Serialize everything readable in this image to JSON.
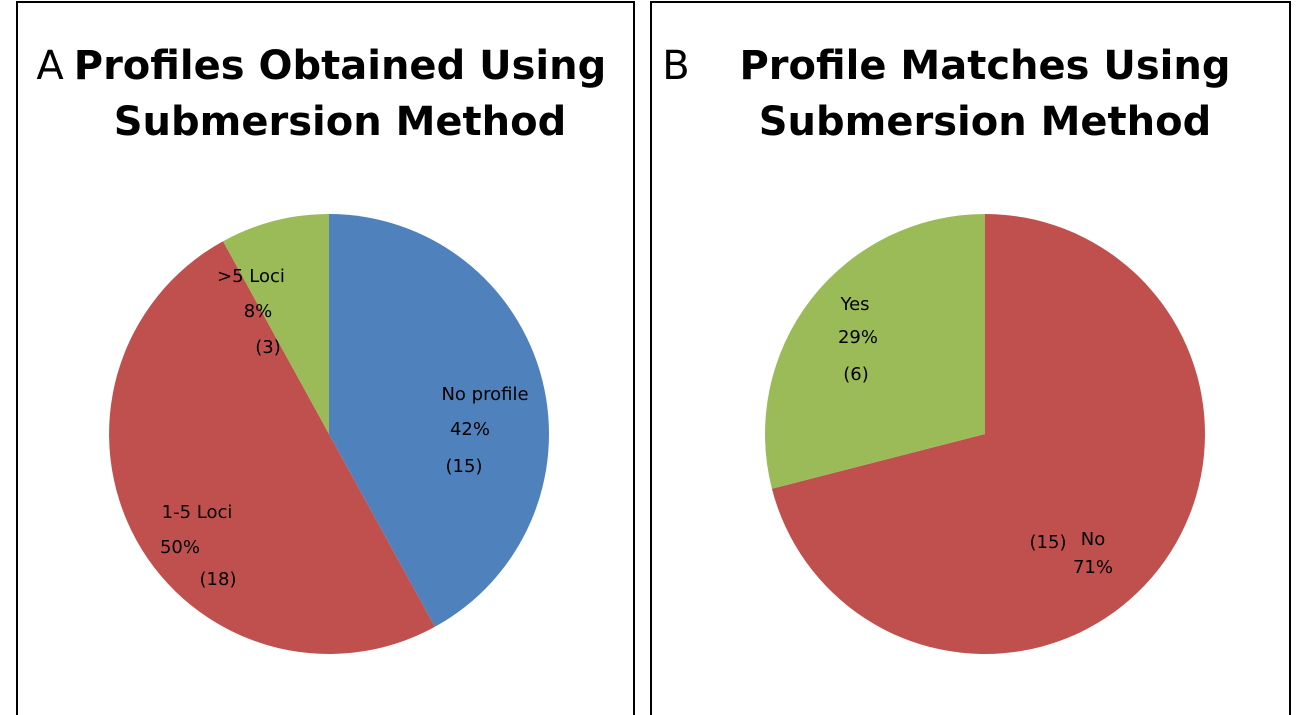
{
  "chart_data": [
    {
      "type": "pie",
      "panel": "A",
      "title": [
        "Profiles Obtained Using",
        "Submersion Method"
      ],
      "categories": [
        "No profile",
        "1-5 Loci",
        ">5 Loci"
      ],
      "values": [
        42,
        50,
        8
      ],
      "value_labels": [
        "42%",
        "50%",
        "8%"
      ],
      "count_labels": [
        "(15)",
        "(18)",
        "(3)"
      ],
      "colors": [
        "#4f81bd",
        "#c0504d",
        "#9bbb59"
      ]
    },
    {
      "type": "pie",
      "panel": "B",
      "title": [
        "Profile Matches Using",
        "Submersion Method"
      ],
      "categories": [
        "No",
        "Yes"
      ],
      "values": [
        71,
        29
      ],
      "value_labels": [
        "71%",
        "29%"
      ],
      "count_labels": [
        "(15)",
        "(6)"
      ],
      "colors": [
        "#c0504d",
        "#9bbb59"
      ]
    }
  ]
}
